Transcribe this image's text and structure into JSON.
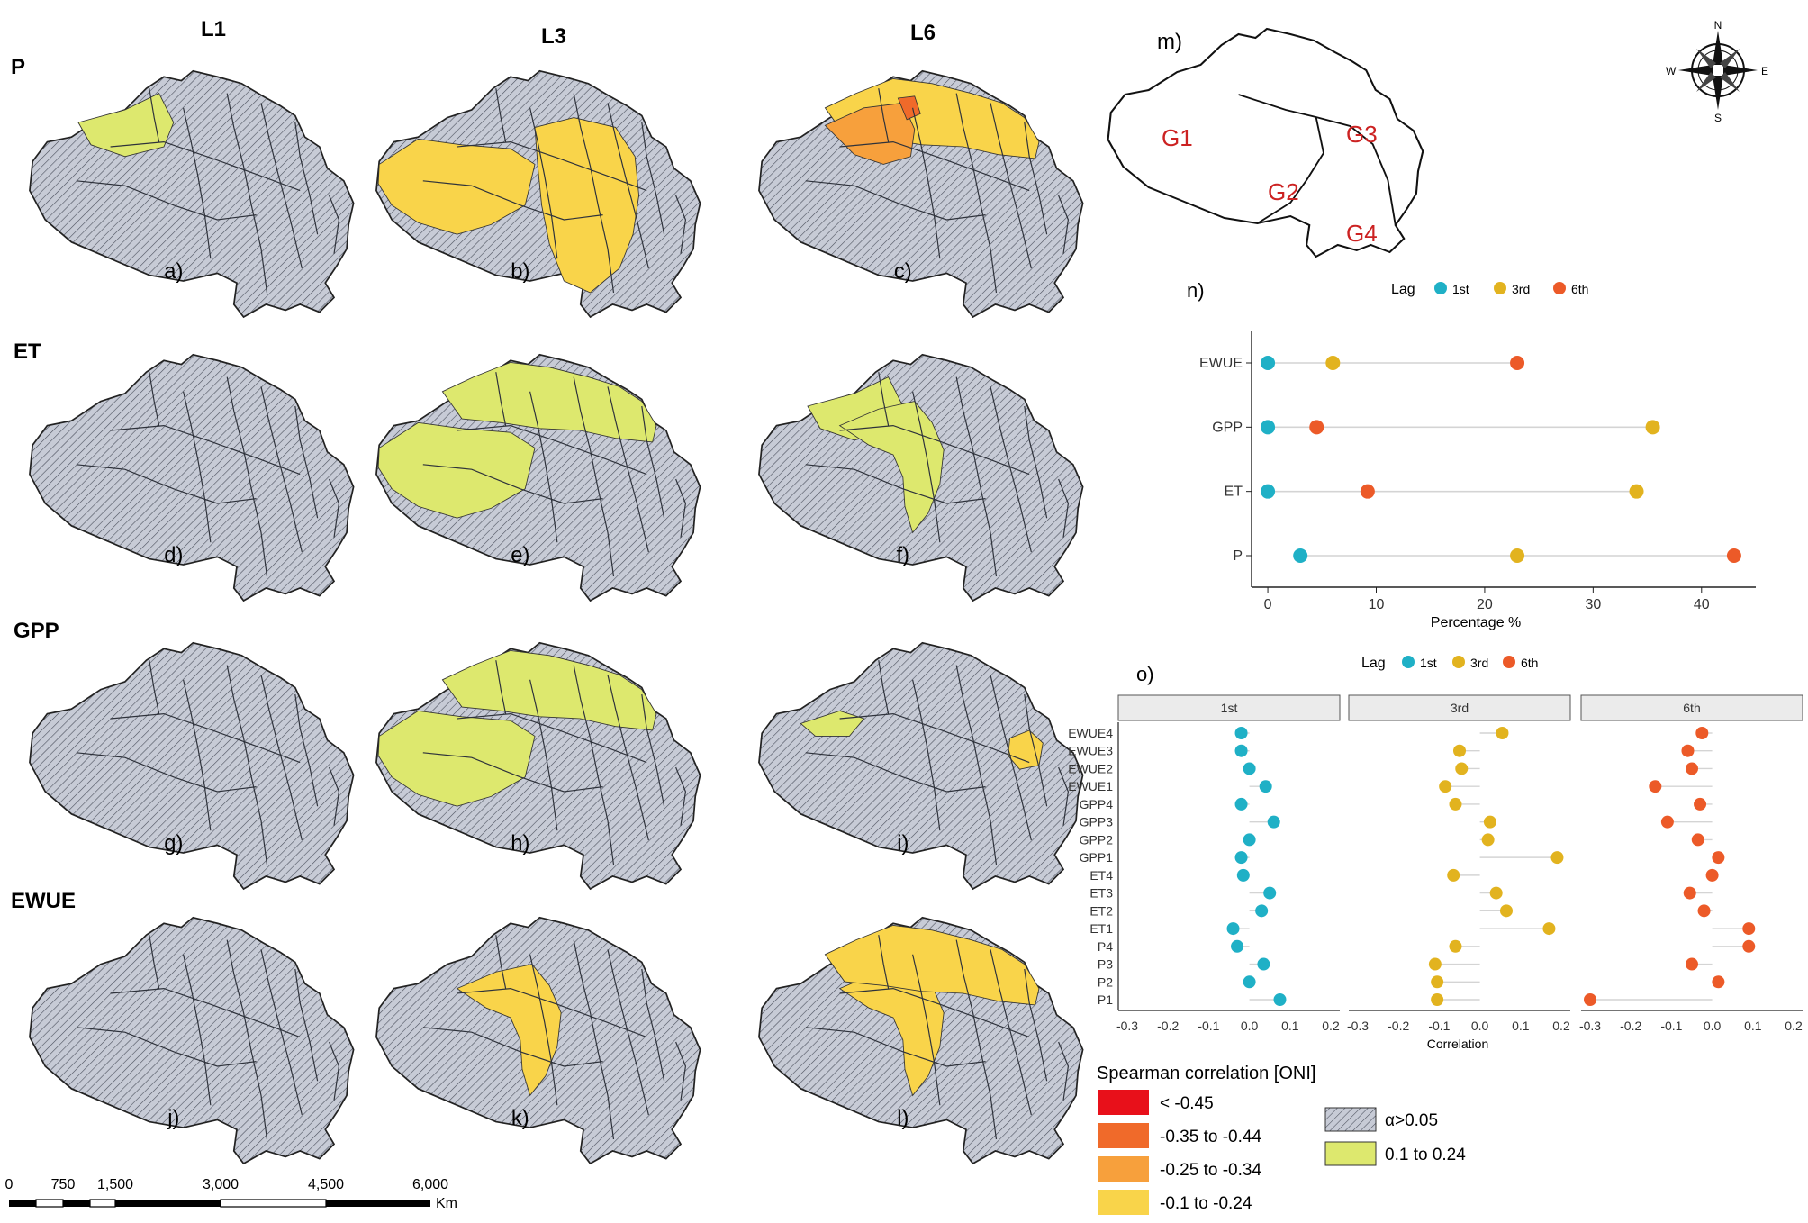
{
  "colors": {
    "hatch_fill": "#c7cbd6",
    "hatch_line": "#4a4f5c",
    "outline": "#222222",
    "lt_neg45": "#e8101a",
    "neg35_44": "#f06a2a",
    "neg25_34": "#f7a03c",
    "neg10_24": "#f9d44a",
    "pos10_24": "#dde86e",
    "lag_1st": "#1fb0c6",
    "lag_3rd": "#e2b31f",
    "lag_6th": "#ec5a28",
    "g_label": "#cc2222"
  },
  "maps": {
    "col_headers": [
      "L1",
      "L3",
      "L6"
    ],
    "row_headers": [
      "P",
      "ET",
      "GPP",
      "EWUE"
    ],
    "panels": [
      {
        "label": "a)",
        "row": 0,
        "col": 0,
        "regions": [
          {
            "shape": "nw-wedge",
            "cls": "pos10_24"
          }
        ]
      },
      {
        "label": "b)",
        "row": 0,
        "col": 1,
        "regions": [
          {
            "shape": "west",
            "cls": "neg10_24"
          },
          {
            "shape": "mid-east",
            "cls": "neg10_24"
          }
        ]
      },
      {
        "label": "c)",
        "row": 0,
        "col": 2,
        "regions": [
          {
            "shape": "north",
            "cls": "neg10_24"
          },
          {
            "shape": "nw-core",
            "cls": "neg25_34"
          },
          {
            "shape": "ne-small",
            "cls": "neg35_44"
          }
        ]
      },
      {
        "label": "d)",
        "row": 1,
        "col": 0,
        "regions": []
      },
      {
        "label": "e)",
        "row": 1,
        "col": 1,
        "regions": [
          {
            "shape": "west",
            "cls": "pos10_24"
          },
          {
            "shape": "north",
            "cls": "pos10_24"
          }
        ]
      },
      {
        "label": "f)",
        "row": 1,
        "col": 2,
        "regions": [
          {
            "shape": "nw-wedge",
            "cls": "pos10_24"
          },
          {
            "shape": "center-strip",
            "cls": "pos10_24"
          }
        ]
      },
      {
        "label": "g)",
        "row": 2,
        "col": 0,
        "regions": []
      },
      {
        "label": "h)",
        "row": 2,
        "col": 1,
        "regions": [
          {
            "shape": "west",
            "cls": "pos10_24"
          },
          {
            "shape": "north",
            "cls": "pos10_24"
          }
        ]
      },
      {
        "label": "i)",
        "row": 2,
        "col": 2,
        "regions": [
          {
            "shape": "nw-small",
            "cls": "pos10_24"
          },
          {
            "shape": "east-small",
            "cls": "neg10_24"
          }
        ]
      },
      {
        "label": "j)",
        "row": 3,
        "col": 0,
        "regions": []
      },
      {
        "label": "k)",
        "row": 3,
        "col": 1,
        "regions": [
          {
            "shape": "center-strip",
            "cls": "neg10_24"
          }
        ]
      },
      {
        "label": "l)",
        "row": 3,
        "col": 2,
        "regions": [
          {
            "shape": "center-strip",
            "cls": "neg10_24"
          },
          {
            "shape": "north",
            "cls": "neg10_24"
          }
        ]
      }
    ]
  },
  "scalebar": {
    "labels": [
      "0",
      "750",
      "1,500",
      "3,000",
      "4,500",
      "6,000"
    ],
    "unit": "Km"
  },
  "panel_m": {
    "label": "m)",
    "groups": [
      "G1",
      "G2",
      "G3",
      "G4"
    ],
    "compass": {
      "n": "N",
      "s": "S",
      "e": "E",
      "w": "W"
    }
  },
  "chart_data": [
    {
      "type": "scatter",
      "panel": "n)",
      "legend_title": "Lag",
      "legend": [
        "1st",
        "3rd",
        "6th"
      ],
      "categories": [
        "EWUE",
        "GPP",
        "ET",
        "P"
      ],
      "series": [
        {
          "name": "1st",
          "values": [
            0,
            0,
            0,
            3
          ]
        },
        {
          "name": "3rd",
          "values": [
            6,
            35.5,
            34,
            23
          ]
        },
        {
          "name": "6th",
          "values": [
            23,
            4.5,
            9.2,
            43
          ]
        }
      ],
      "xlabel": "Percentage %",
      "xlim": [
        -1.5,
        45
      ],
      "xticks": [
        0,
        10,
        20,
        30,
        40
      ]
    },
    {
      "type": "scatter",
      "panel": "o)",
      "legend_title": "Lag",
      "legend": [
        "1st",
        "3rd",
        "6th"
      ],
      "facets": [
        "1st",
        "3rd",
        "6th"
      ],
      "categories": [
        "EWUE4",
        "EWUE3",
        "EWUE2",
        "EWUE1",
        "GPP4",
        "GPP3",
        "GPP2",
        "GPP1",
        "ET4",
        "ET3",
        "ET2",
        "ET1",
        "P4",
        "P3",
        "P2",
        "P1"
      ],
      "series": [
        {
          "name": "1st",
          "values": [
            -0.02,
            -0.02,
            0.0,
            0.04,
            -0.02,
            0.06,
            0.0,
            -0.02,
            -0.015,
            0.05,
            0.03,
            -0.04,
            -0.03,
            0.035,
            0.0,
            0.075
          ]
        },
        {
          "name": "3rd",
          "values": [
            0.055,
            -0.05,
            -0.045,
            -0.085,
            -0.06,
            0.025,
            0.02,
            0.19,
            -0.065,
            0.04,
            0.065,
            0.17,
            -0.06,
            -0.11,
            -0.105,
            -0.105
          ]
        },
        {
          "name": "6th",
          "values": [
            -0.025,
            -0.06,
            -0.05,
            -0.14,
            -0.03,
            -0.11,
            -0.035,
            0.015,
            0.0,
            -0.055,
            -0.02,
            0.09,
            0.09,
            -0.05,
            0.015,
            -0.3
          ]
        }
      ],
      "xlabel": "Correlation",
      "xlim": [
        -0.3,
        0.2
      ],
      "xticks": [
        "-0.3",
        "-0.2",
        "-0.1",
        "0.0",
        "0.1",
        "0.2"
      ]
    }
  ],
  "legend": {
    "title": "Spearman correlation [ONI]",
    "items_left": [
      {
        "label": "< -0.45",
        "cls": "lt_neg45"
      },
      {
        "label": "-0.35 to -0.44",
        "cls": "neg35_44"
      },
      {
        "label": "-0.25 to -0.34",
        "cls": "neg25_34"
      },
      {
        "label": "-0.1 to -0.24",
        "cls": "neg10_24"
      }
    ],
    "items_right": [
      {
        "label": "α>0.05",
        "cls": "hatch"
      },
      {
        "label": "0.1 to 0.24",
        "cls": "pos10_24"
      }
    ]
  }
}
